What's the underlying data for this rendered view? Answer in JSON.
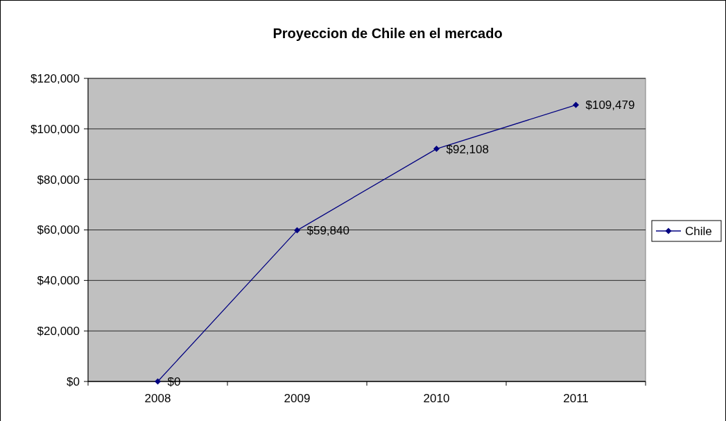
{
  "chart_data": {
    "type": "line",
    "title": "Proyeccion de Chile en el mercado",
    "categories": [
      "2008",
      "2009",
      "2010",
      "2011"
    ],
    "series": [
      {
        "name": "Chile",
        "color": "#000080",
        "values": [
          0,
          59840,
          92108,
          109479
        ],
        "value_labels": [
          "$0",
          "$59,840",
          "$92,108",
          "$109,479"
        ]
      }
    ],
    "ylim": [
      0,
      120000
    ],
    "yticks": [
      {
        "value": 0,
        "label": "$0"
      },
      {
        "value": 20000,
        "label": "$20,000"
      },
      {
        "value": 40000,
        "label": "$40,000"
      },
      {
        "value": 60000,
        "label": "$60,000"
      },
      {
        "value": 80000,
        "label": "$80,000"
      },
      {
        "value": 100000,
        "label": "$100,000"
      },
      {
        "value": 120000,
        "label": "$120,000"
      }
    ],
    "grid": "y",
    "legend": "right",
    "marker": "diamond",
    "line_style": "solid"
  }
}
